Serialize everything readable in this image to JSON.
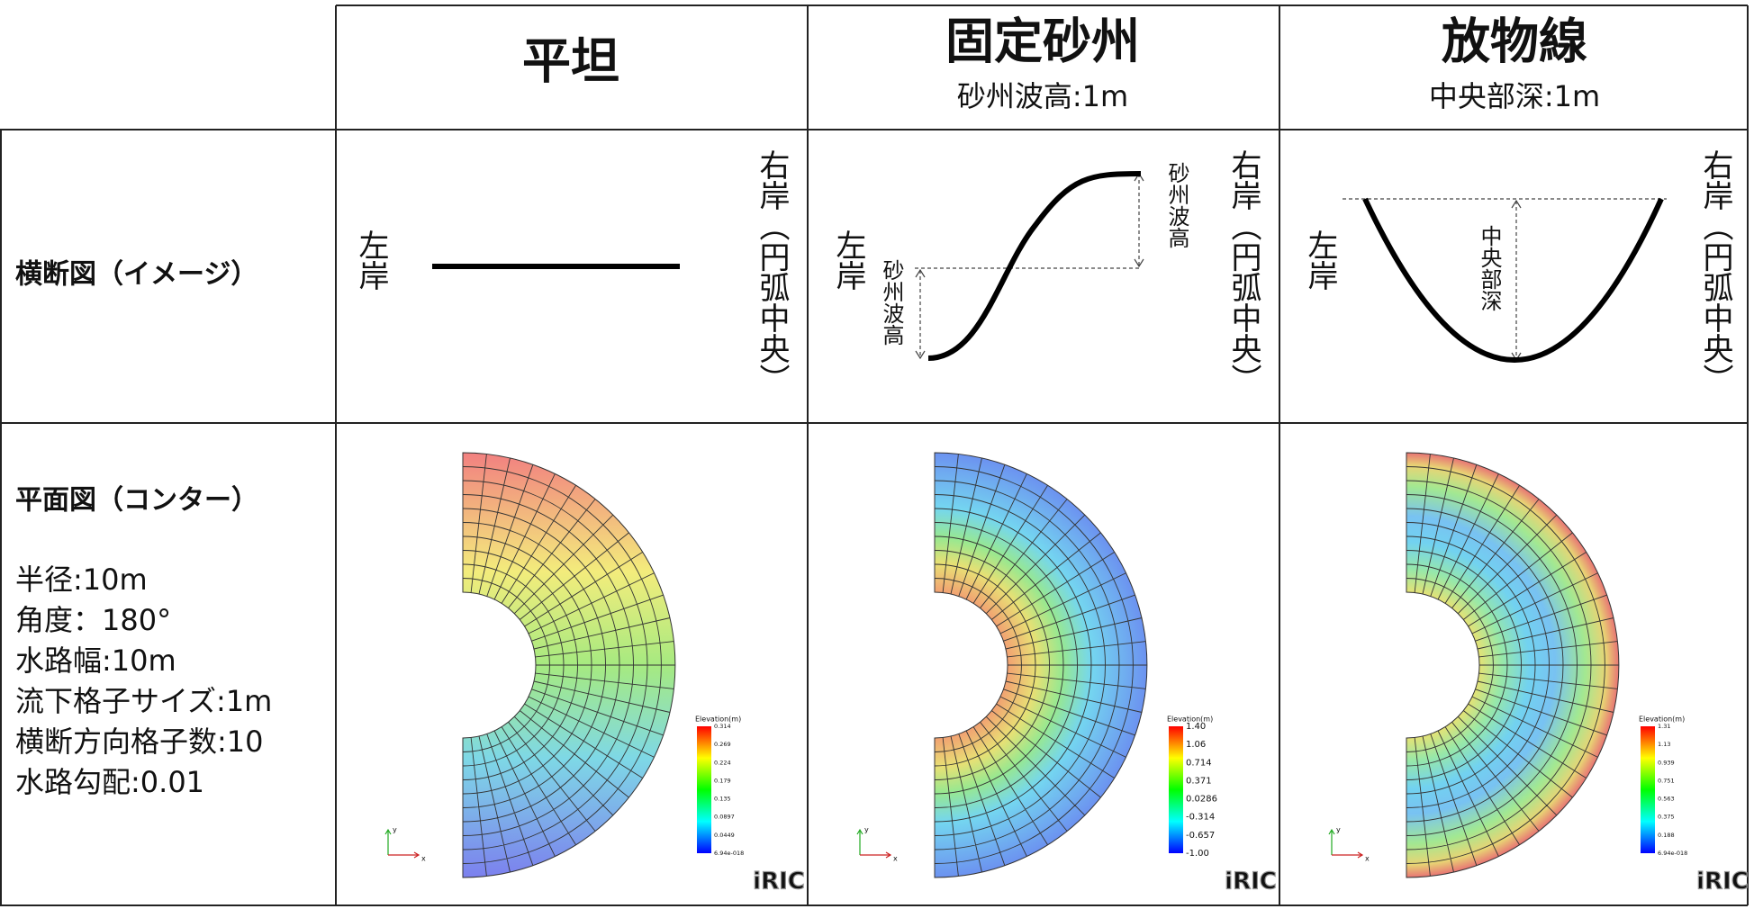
{
  "header": {
    "columns": [
      {
        "title": "平坦"
      },
      {
        "title": "固定砂州",
        "subtitle": "砂州波高:1m"
      },
      {
        "title": "放物線",
        "subtitle": "中央部深:1m"
      }
    ]
  },
  "rows": [
    {
      "label": "横断図（イメージ）"
    },
    {
      "label": "平面図（コンター）",
      "parameters": [
        "半径:10m",
        "角度：180°",
        "水路幅:10m",
        "流下格子サイズ:1m",
        "横断方向格子数:10",
        "水路勾配:0.01"
      ]
    }
  ],
  "cross_sections": [
    {
      "left_bank": "左岸",
      "right_bank": "右岸（円弧中央）"
    },
    {
      "left_bank": "左岸",
      "right_bank": "右岸（円弧中央）",
      "annotations": [
        "砂州波高",
        "砂州波高"
      ]
    },
    {
      "left_bank": "左岸",
      "right_bank": "右岸（円弧中央）",
      "annotations": [
        "中央部深"
      ]
    }
  ],
  "contours": [
    {
      "legend_title": "Elevation(m)",
      "legend_ticks": [
        "0.314",
        "0.269",
        "0.224",
        "0.179",
        "0.135",
        "0.0897",
        "0.0449",
        "6.94e-018"
      ],
      "axis_x": "x",
      "axis_y": "y",
      "logo": "iRIC"
    },
    {
      "legend_title": "Elevation(m)",
      "legend_ticks": [
        "1.40",
        "1.06",
        "0.714",
        "0.371",
        "0.0286",
        "-0.314",
        "-0.657",
        "-1.00"
      ],
      "axis_x": "x",
      "axis_y": "y",
      "logo": "iRIC"
    },
    {
      "legend_title": "Elevation(m)",
      "legend_ticks": [
        "1.31",
        "1.13",
        "0.939",
        "0.751",
        "0.563",
        "0.375",
        "0.188",
        "6.94e-018"
      ],
      "axis_x": "x",
      "axis_y": "y",
      "logo": "iRIC"
    }
  ]
}
